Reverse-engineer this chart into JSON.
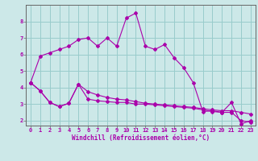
{
  "xlabel": "Windchill (Refroidissement éolien,°C)",
  "background_color": "#cce8e8",
  "line_color": "#aa00aa",
  "grid_color": "#99cccc",
  "axis_color": "#666666",
  "xlim": [
    -0.5,
    23.5
  ],
  "ylim": [
    1.7,
    9.0
  ],
  "xticks": [
    0,
    1,
    2,
    3,
    4,
    5,
    6,
    7,
    8,
    9,
    10,
    11,
    12,
    13,
    14,
    15,
    16,
    17,
    18,
    19,
    20,
    21,
    22,
    23
  ],
  "yticks": [
    2,
    3,
    4,
    5,
    6,
    7,
    8
  ],
  "series1_x": [
    0,
    1,
    2,
    3,
    4,
    5,
    6,
    7,
    8,
    9,
    10,
    11,
    12,
    13,
    14,
    15,
    16,
    17,
    18,
    19,
    20,
    21,
    22,
    23
  ],
  "series1_y": [
    4.3,
    5.9,
    6.1,
    6.3,
    6.5,
    6.9,
    7.0,
    6.5,
    7.0,
    6.5,
    8.2,
    8.5,
    6.5,
    6.3,
    6.6,
    5.8,
    5.2,
    4.3,
    2.55,
    2.6,
    2.5,
    2.5,
    2.0,
    1.9
  ],
  "series2_x": [
    0,
    1,
    2,
    3,
    4,
    5,
    6,
    7,
    8,
    9,
    10,
    11,
    12,
    13,
    14,
    15,
    16,
    17,
    18,
    19,
    20,
    21,
    22,
    23
  ],
  "series2_y": [
    4.3,
    3.8,
    3.1,
    2.85,
    3.05,
    4.2,
    3.3,
    3.2,
    3.15,
    3.1,
    3.1,
    3.0,
    3.0,
    2.95,
    2.9,
    2.85,
    2.8,
    2.75,
    2.65,
    2.55,
    2.5,
    3.1,
    1.8,
    2.0
  ],
  "series3_x": [
    0,
    1,
    2,
    3,
    4,
    5,
    6,
    7,
    8,
    9,
    10,
    11,
    12,
    13,
    14,
    15,
    16,
    17,
    18,
    19,
    20,
    21,
    22,
    23
  ],
  "series3_y": [
    4.3,
    3.8,
    3.1,
    2.85,
    3.05,
    4.2,
    3.75,
    3.55,
    3.4,
    3.3,
    3.25,
    3.15,
    3.05,
    3.0,
    2.95,
    2.9,
    2.85,
    2.8,
    2.72,
    2.65,
    2.6,
    2.6,
    2.5,
    2.4
  ]
}
